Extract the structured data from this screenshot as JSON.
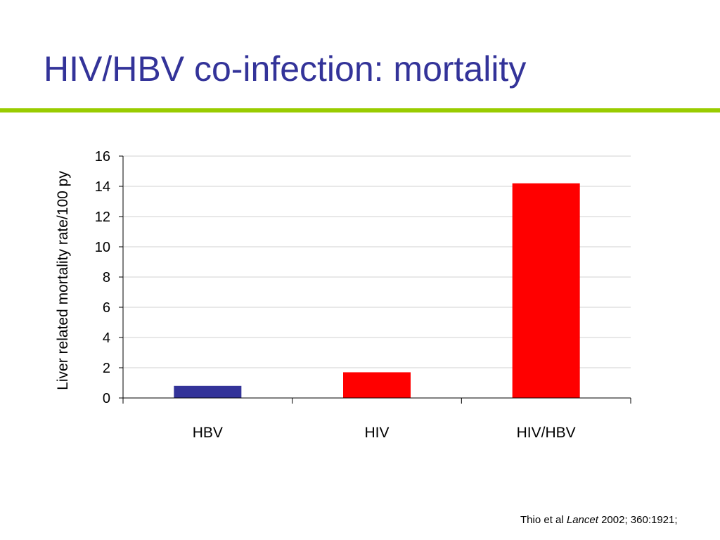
{
  "slide": {
    "title": "HIV/HBV co-infection: mortality",
    "title_color": "#333399",
    "rule_color": "#99cc00"
  },
  "citation": {
    "authors": "Thio et al ",
    "journal": "Lancet",
    "details": " 2002; 360:1921;"
  },
  "chart_data": {
    "type": "bar",
    "title": "",
    "xlabel": "",
    "ylabel": "Liver related mortality rate/100 py",
    "categories": [
      "HBV",
      "HIV",
      "HIV/HBV"
    ],
    "values": [
      0.8,
      1.7,
      14.2
    ],
    "bar_colors": [
      "#333399",
      "#ff0000",
      "#ff0000"
    ],
    "ylim": [
      0,
      16
    ],
    "yticks": [
      "0",
      "2",
      "4",
      "6",
      "8",
      "10",
      "12",
      "14",
      "16"
    ],
    "grid": true,
    "legend": "none"
  }
}
